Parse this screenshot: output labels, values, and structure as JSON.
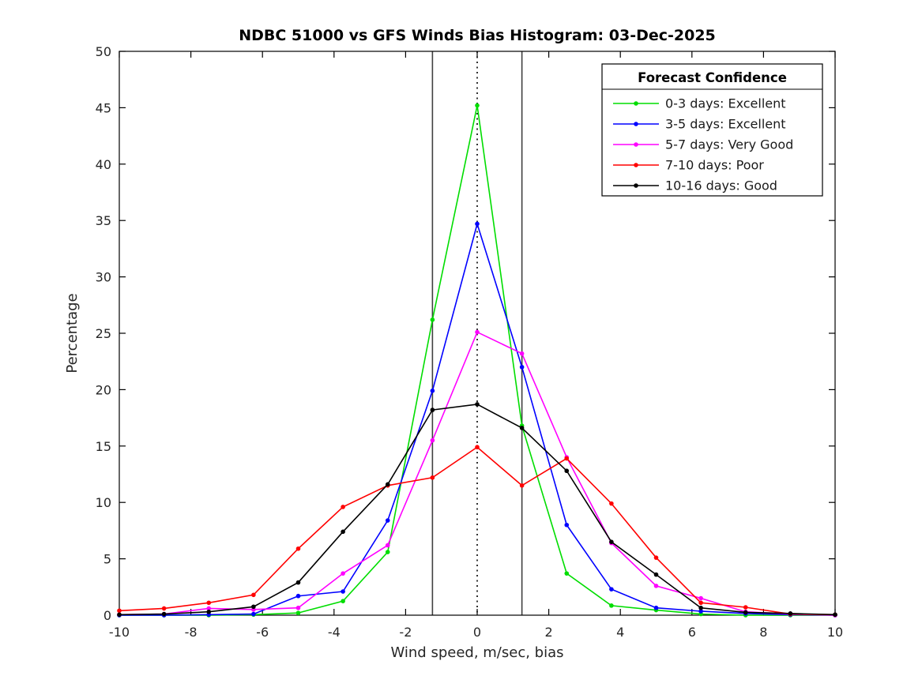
{
  "title": "NDBC 51000 vs GFS Winds Bias Histogram: 03-Dec-2025",
  "chart_data": {
    "type": "line",
    "title": "NDBC 51000 vs GFS Winds Bias Histogram: 03-Dec-2025",
    "xlabel": "Wind speed, m/sec, bias",
    "ylabel": "Percentage",
    "xlim": [
      -10,
      10
    ],
    "ylim": [
      0,
      50
    ],
    "xticks": [
      -10,
      -8,
      -6,
      -4,
      -2,
      0,
      2,
      4,
      6,
      8,
      10
    ],
    "yticks": [
      0,
      5,
      10,
      15,
      20,
      25,
      30,
      35,
      40,
      45,
      50
    ],
    "grid": false,
    "legend": {
      "title": "Forecast Confidence",
      "position": "top-right"
    },
    "x": [
      -10,
      -8.75,
      -7.5,
      -6.25,
      -5,
      -3.75,
      -2.5,
      -1.25,
      0,
      1.25,
      2.5,
      3.75,
      5,
      6.25,
      7.5,
      8.75,
      10
    ],
    "series": [
      {
        "name": "0-3 days: Excellent",
        "color": "#00dd00",
        "values": [
          0,
          0,
          0,
          0.05,
          0.2,
          1.25,
          5.6,
          26.2,
          45.2,
          16.8,
          3.7,
          0.85,
          0.45,
          0.1,
          0,
          0,
          0
        ]
      },
      {
        "name": "3-5 days: Excellent",
        "color": "#0000ff",
        "values": [
          0,
          0,
          0.05,
          0.1,
          1.7,
          2.1,
          8.4,
          19.9,
          34.7,
          22.0,
          8.0,
          2.3,
          0.65,
          0.35,
          0.15,
          0.05,
          0
        ]
      },
      {
        "name": "5-7 days: Very Good",
        "color": "#ff00ff",
        "values": [
          0.05,
          0.1,
          0.6,
          0.5,
          0.65,
          3.7,
          6.2,
          15.5,
          25.1,
          23.2,
          14.0,
          6.4,
          2.6,
          1.5,
          0.3,
          0.1,
          0
        ]
      },
      {
        "name": "7-10 days: Poor",
        "color": "#ff0000",
        "values": [
          0.4,
          0.6,
          1.1,
          1.8,
          5.9,
          9.6,
          11.5,
          12.2,
          14.9,
          11.5,
          13.9,
          9.9,
          5.1,
          1.1,
          0.7,
          0.1,
          0.05
        ]
      },
      {
        "name": "10-16 days: Good",
        "color": "#000000",
        "values": [
          0.05,
          0.1,
          0.3,
          0.75,
          2.9,
          7.4,
          11.6,
          18.2,
          18.7,
          16.6,
          12.8,
          6.5,
          3.6,
          0.65,
          0.25,
          0.15,
          0.05
        ]
      }
    ],
    "vlines": [
      {
        "x": -1.25,
        "style": "solid",
        "color": "#404040"
      },
      {
        "x": 0,
        "style": "dotted",
        "color": "#000000"
      },
      {
        "x": 1.25,
        "style": "solid",
        "color": "#404040"
      }
    ]
  }
}
